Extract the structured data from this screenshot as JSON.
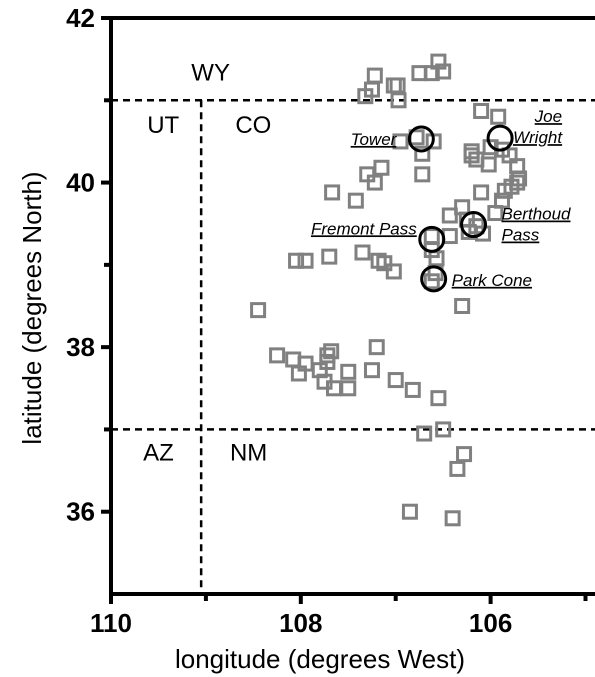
{
  "chart_data": {
    "type": "scatter",
    "title": "",
    "xlabel": "longitude (degrees West)",
    "ylabel": "latitude (degrees North)",
    "xlim": [
      110,
      104.9
    ],
    "ylim": [
      35,
      42
    ],
    "x_reversed": true,
    "x_ticks": [
      110,
      108,
      106
    ],
    "y_ticks": [
      36,
      38,
      40,
      42
    ],
    "x_tick_labels": [
      "110",
      "108",
      "106"
    ],
    "y_tick_labels": [
      "36",
      "38",
      "40",
      "42"
    ],
    "grid": false,
    "marker": "open-square",
    "marker_color": "#808080",
    "points": [
      {
        "x": 106.55,
        "y": 41.47
      },
      {
        "x": 106.75,
        "y": 41.33
      },
      {
        "x": 106.5,
        "y": 41.35
      },
      {
        "x": 106.62,
        "y": 41.33
      },
      {
        "x": 107.22,
        "y": 41.3
      },
      {
        "x": 107.02,
        "y": 41.18
      },
      {
        "x": 106.98,
        "y": 41.18
      },
      {
        "x": 107.25,
        "y": 41.13
      },
      {
        "x": 107.32,
        "y": 41.05
      },
      {
        "x": 106.97,
        "y": 41.0
      },
      {
        "x": 106.1,
        "y": 40.87
      },
      {
        "x": 105.92,
        "y": 40.8
      },
      {
        "x": 106.78,
        "y": 40.55
      },
      {
        "x": 106.6,
        "y": 40.5
      },
      {
        "x": 106.72,
        "y": 40.35
      },
      {
        "x": 106.0,
        "y": 40.43
      },
      {
        "x": 106.2,
        "y": 40.38
      },
      {
        "x": 105.88,
        "y": 40.4
      },
      {
        "x": 105.8,
        "y": 40.33
      },
      {
        "x": 106.2,
        "y": 40.33
      },
      {
        "x": 105.72,
        "y": 40.2
      },
      {
        "x": 105.7,
        "y": 40.05
      },
      {
        "x": 105.72,
        "y": 40.0
      },
      {
        "x": 106.15,
        "y": 40.28
      },
      {
        "x": 106.95,
        "y": 40.5
      },
      {
        "x": 106.02,
        "y": 40.22
      },
      {
        "x": 107.15,
        "y": 40.18
      },
      {
        "x": 107.3,
        "y": 40.1
      },
      {
        "x": 107.22,
        "y": 40.0
      },
      {
        "x": 106.72,
        "y": 40.1
      },
      {
        "x": 105.85,
        "y": 39.9
      },
      {
        "x": 105.78,
        "y": 39.95
      },
      {
        "x": 106.1,
        "y": 39.88
      },
      {
        "x": 107.67,
        "y": 39.88
      },
      {
        "x": 107.42,
        "y": 39.78
      },
      {
        "x": 105.88,
        "y": 39.78
      },
      {
        "x": 105.95,
        "y": 39.63
      },
      {
        "x": 106.3,
        "y": 39.7
      },
      {
        "x": 106.43,
        "y": 39.6
      },
      {
        "x": 106.25,
        "y": 39.55
      },
      {
        "x": 106.15,
        "y": 39.47
      },
      {
        "x": 106.23,
        "y": 39.4
      },
      {
        "x": 106.43,
        "y": 39.35
      },
      {
        "x": 106.08,
        "y": 39.38
      },
      {
        "x": 106.62,
        "y": 39.35
      },
      {
        "x": 106.62,
        "y": 39.18
      },
      {
        "x": 106.57,
        "y": 39.08
      },
      {
        "x": 107.35,
        "y": 39.15
      },
      {
        "x": 107.7,
        "y": 39.1
      },
      {
        "x": 107.18,
        "y": 39.05
      },
      {
        "x": 107.12,
        "y": 39.02
      },
      {
        "x": 107.02,
        "y": 38.92
      },
      {
        "x": 108.05,
        "y": 39.05
      },
      {
        "x": 107.95,
        "y": 39.05
      },
      {
        "x": 106.58,
        "y": 38.9
      },
      {
        "x": 106.62,
        "y": 38.8
      },
      {
        "x": 108.45,
        "y": 38.45
      },
      {
        "x": 106.3,
        "y": 38.5
      },
      {
        "x": 108.25,
        "y": 37.9
      },
      {
        "x": 108.08,
        "y": 37.85
      },
      {
        "x": 107.95,
        "y": 37.8
      },
      {
        "x": 108.02,
        "y": 37.68
      },
      {
        "x": 107.8,
        "y": 37.72
      },
      {
        "x": 107.72,
        "y": 37.9
      },
      {
        "x": 107.68,
        "y": 37.95
      },
      {
        "x": 107.72,
        "y": 37.82
      },
      {
        "x": 107.75,
        "y": 37.58
      },
      {
        "x": 107.65,
        "y": 37.5
      },
      {
        "x": 107.5,
        "y": 37.5
      },
      {
        "x": 107.5,
        "y": 37.7
      },
      {
        "x": 107.25,
        "y": 37.72
      },
      {
        "x": 107.2,
        "y": 38.0
      },
      {
        "x": 107.0,
        "y": 37.6
      },
      {
        "x": 106.82,
        "y": 37.48
      },
      {
        "x": 106.55,
        "y": 37.38
      },
      {
        "x": 106.7,
        "y": 36.95
      },
      {
        "x": 106.5,
        "y": 37.0
      },
      {
        "x": 106.35,
        "y": 36.52
      },
      {
        "x": 106.28,
        "y": 36.7
      },
      {
        "x": 106.85,
        "y": 36.0
      },
      {
        "x": 106.4,
        "y": 35.92
      }
    ],
    "study_sites": [
      {
        "name": "Tower",
        "x": 106.73,
        "y": 40.53,
        "label": "Tower"
      },
      {
        "name": "Joe Wright",
        "x": 105.9,
        "y": 40.54,
        "label_lines": [
          "Joe",
          "Wright"
        ]
      },
      {
        "name": "Fremont Pass",
        "x": 106.62,
        "y": 39.31,
        "label": "Fremont Pass"
      },
      {
        "name": "Berthoud Pass",
        "x": 106.18,
        "y": 39.49,
        "label_lines": [
          "Berthoud",
          "Pass"
        ]
      },
      {
        "name": "Park Cone",
        "x": 106.6,
        "y": 38.83,
        "label": "Park Cone"
      }
    ],
    "borders": [
      {
        "orientation": "horizontal",
        "y": 41
      },
      {
        "orientation": "horizontal",
        "y": 37
      },
      {
        "orientation": "vertical",
        "x": 109.05,
        "y_from": 41,
        "y_to": 35
      }
    ],
    "state_labels": [
      {
        "text": "WY",
        "x": 108.95,
        "y": 41.24
      },
      {
        "text": "UT",
        "x": 109.45,
        "y": 40.6
      },
      {
        "text": "CO",
        "x": 108.5,
        "y": 40.6
      },
      {
        "text": "AZ",
        "x": 109.5,
        "y": 36.62
      },
      {
        "text": "NM",
        "x": 108.55,
        "y": 36.62
      }
    ],
    "legend": "none"
  }
}
